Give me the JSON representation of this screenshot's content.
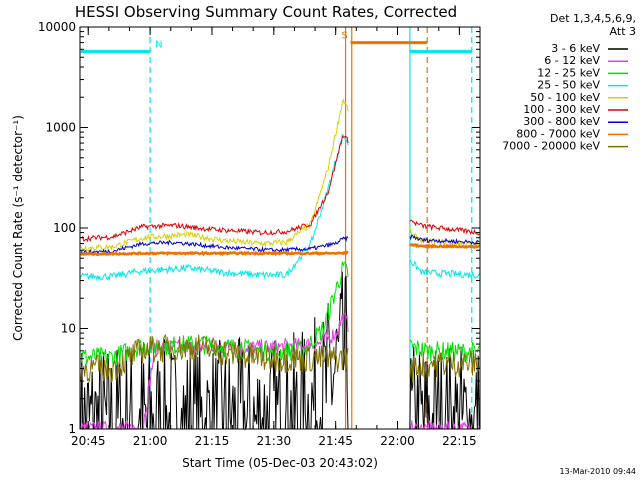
{
  "chart_data": {
    "type": "line",
    "title": "HESSI Observing Summary Count Rates, Corrected",
    "xlabel": "Start Time (05-Dec-03 20:43:02)",
    "ylabel": "Corrected Count Rate (s⁻¹ detector⁻¹)",
    "y_scale": "log",
    "ylim": [
      1,
      10000
    ],
    "xlim": [
      20.71667,
      22.33333
    ],
    "x_ticks": [
      {
        "x": 20.75,
        "label": "20:45"
      },
      {
        "x": 21.0,
        "label": "21:00"
      },
      {
        "x": 21.25,
        "label": "21:15"
      },
      {
        "x": 21.5,
        "label": "21:30"
      },
      {
        "x": 21.75,
        "label": "21:45"
      },
      {
        "x": 22.0,
        "label": "22:00"
      },
      {
        "x": 22.25,
        "label": "22:15"
      }
    ],
    "y_ticks": [
      {
        "y": 1,
        "label": "1"
      },
      {
        "y": 10,
        "label": "10"
      },
      {
        "y": 100,
        "label": "100"
      },
      {
        "y": 1000,
        "label": "1000"
      },
      {
        "y": 10000,
        "label": "10000"
      }
    ],
    "legend_title": [
      "Det 1,3,4,5,6,9,",
      "Att 3"
    ],
    "legend_position": "top-right",
    "data_gap": [
      21.8,
      22.05
    ],
    "series": [
      {
        "name": "3 - 6 keV",
        "color": "#000000",
        "noise": 0.9,
        "x": [
          20.72,
          21.3,
          21.6,
          21.7,
          21.74,
          21.78,
          22.06,
          22.33
        ],
        "y": [
          1,
          1,
          1.2,
          2,
          3.5,
          5,
          1,
          1
        ]
      },
      {
        "name": "6 - 12 keV",
        "color": "#e040e0",
        "noise": 0.08,
        "x": [
          20.72,
          20.97,
          21.02,
          21.25,
          21.5,
          21.68,
          21.75,
          21.78,
          22.06,
          22.33
        ],
        "y": [
          1,
          1,
          6.5,
          6.5,
          6.5,
          7,
          9,
          13,
          1,
          1
        ]
      },
      {
        "name": "12 - 25 keV",
        "color": "#00e000",
        "noise": 0.1,
        "x": [
          20.72,
          20.85,
          20.95,
          21.2,
          21.5,
          21.62,
          21.7,
          21.78,
          22.06,
          22.12,
          22.33
        ],
        "y": [
          5.2,
          5.2,
          6.5,
          7,
          5.8,
          6,
          10,
          40,
          6.5,
          6,
          5.8
        ]
      },
      {
        "name": "25 - 50 keV",
        "color": "#00e8e8",
        "noise": 0.035,
        "x": [
          20.72,
          20.85,
          20.95,
          21.15,
          21.3,
          21.45,
          21.55,
          21.65,
          21.72,
          21.78,
          22.06,
          22.1,
          22.33
        ],
        "y": [
          33,
          33,
          37,
          40,
          36,
          34,
          34,
          70,
          250,
          850,
          45,
          36,
          34
        ]
      },
      {
        "name": "50 - 100 keV",
        "color": "#d8d000",
        "noise": 0.03,
        "x": [
          20.72,
          20.85,
          20.97,
          21.15,
          21.3,
          21.45,
          21.55,
          21.65,
          21.72,
          21.78,
          22.06,
          22.1,
          22.33
        ],
        "y": [
          63,
          65,
          80,
          86,
          75,
          70,
          72,
          110,
          400,
          1900,
          85,
          75,
          68
        ]
      },
      {
        "name": "100 - 300 keV",
        "color": "#e00000",
        "noise": 0.025,
        "x": [
          20.72,
          20.85,
          20.97,
          21.1,
          21.25,
          21.45,
          21.55,
          21.65,
          21.72,
          21.78,
          22.06,
          22.1,
          22.33
        ],
        "y": [
          78,
          82,
          103,
          106,
          97,
          90,
          92,
          110,
          230,
          850,
          115,
          105,
          90
        ]
      },
      {
        "name": "300 - 800 keV",
        "color": "#0000c8",
        "noise": 0.02,
        "x": [
          20.72,
          20.85,
          20.97,
          21.1,
          21.3,
          21.5,
          21.65,
          21.75,
          21.78,
          22.06,
          22.1,
          22.33
        ],
        "y": [
          57,
          59,
          70,
          72,
          64,
          60,
          62,
          70,
          78,
          82,
          76,
          72
        ]
      },
      {
        "name": "800 - 7000 keV",
        "color": "#f07000",
        "noise": 0.008,
        "x": [
          20.72,
          21.0,
          21.5,
          21.78,
          22.06,
          22.1,
          22.33
        ],
        "y": [
          55,
          56,
          56,
          56,
          68,
          66,
          65
        ]
      },
      {
        "name": "7000 - 20000 keV",
        "color": "#807000",
        "noise": 0.14,
        "x": [
          20.72,
          20.85,
          20.97,
          21.2,
          21.45,
          21.6,
          21.78,
          22.06,
          22.12,
          22.33
        ],
        "y": [
          4,
          4,
          6.2,
          6.5,
          5,
          5,
          5,
          4,
          4.5,
          4.5
        ]
      }
    ],
    "flags": [
      {
        "label": "N",
        "color": "#00e8e8",
        "bar_x": [
          20.72,
          21.0
        ],
        "bar_y": 5700,
        "marker_x": 21.0
      },
      {
        "label": "S",
        "color": "#f07000",
        "bar_x": [
          21.81,
          22.12
        ],
        "bar_y": 7000,
        "marker_x": 21.81
      },
      {
        "label": "",
        "color": "#00e8e8",
        "bar_x": [
          22.05,
          22.3
        ],
        "bar_y": 5700,
        "marker_x": 22.3
      }
    ],
    "vertical_markers": [
      {
        "x": 21.79,
        "color": "#f07000",
        "style": "solid"
      },
      {
        "x": 21.815,
        "color": "#f07000",
        "style": "solid"
      },
      {
        "x": 22.05,
        "color": "#00e8e8",
        "style": "solid"
      },
      {
        "x": 22.12,
        "color": "#f07000",
        "style": "dashed"
      },
      {
        "x": 21.0,
        "color": "#00e8e8",
        "style": "dashed"
      },
      {
        "x": 22.3,
        "color": "#00e8e8",
        "style": "dashed"
      }
    ],
    "footer": "13-Mar-2010 09:44"
  }
}
